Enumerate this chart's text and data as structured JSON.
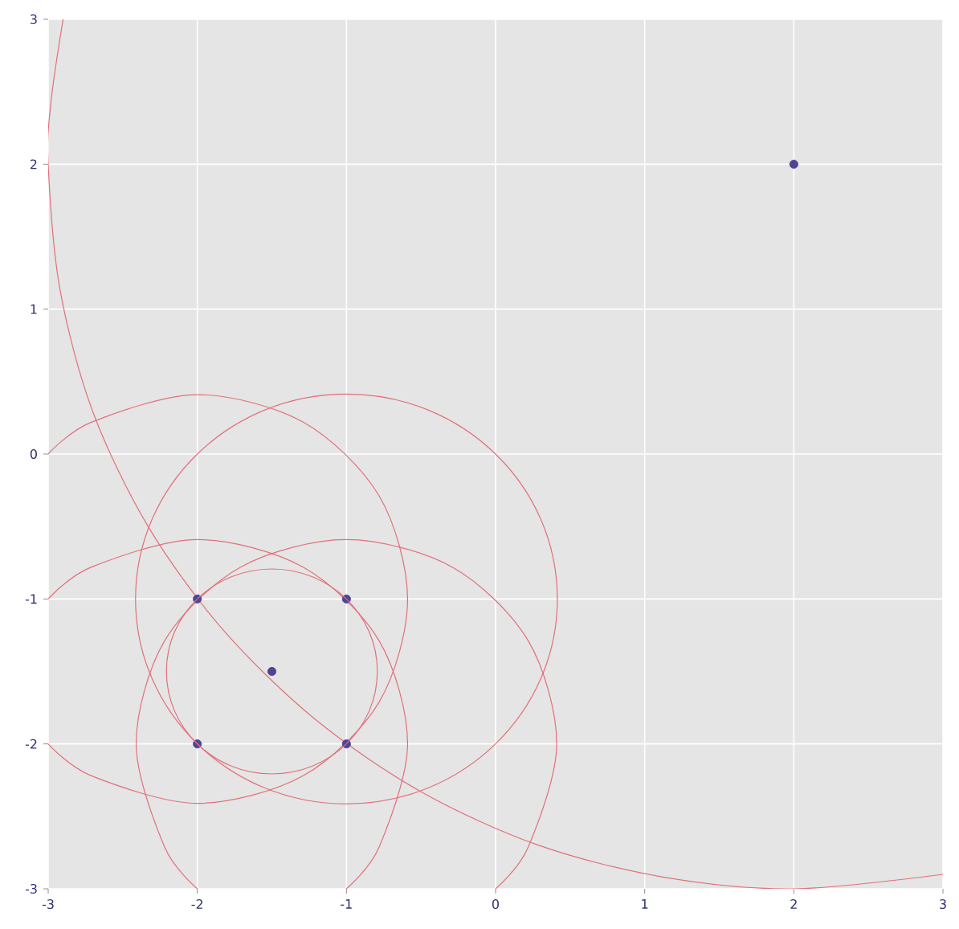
{
  "chart_data": {
    "type": "scatter",
    "xlim": [
      -3,
      3
    ],
    "ylim": [
      -3,
      3
    ],
    "xticks": [
      -3,
      -2,
      -1,
      0,
      1,
      2,
      3
    ],
    "yticks": [
      -3,
      -2,
      -1,
      0,
      1,
      2,
      3
    ],
    "grid": true,
    "line_style": "solid",
    "series": [
      {
        "marker": "circle",
        "color": "#4e4596",
        "x": [
          -2,
          -1,
          -2,
          -1,
          -1.5,
          2
        ],
        "values": [
          -1,
          -1,
          -2,
          -2,
          -1.5,
          2
        ]
      },
      {
        "type": "line",
        "color": "#e0707a",
        "x": [
          -2.9,
          -2.98,
          -3,
          -2.92,
          -2.7,
          -2.33,
          -1.83,
          -1.21,
          -0.5,
          0.29,
          1.13,
          2,
          3
        ],
        "values": [
          3,
          2.44,
          2,
          1.13,
          0.29,
          -0.5,
          -1.21,
          -1.83,
          -2.33,
          -2.7,
          -2.92,
          -3,
          -2.9
        ]
      },
      {
        "type": "line",
        "color": "#e0707a",
        "x": [
          -3,
          -2.71,
          -2,
          -1.29,
          -0.78,
          -0.59,
          -0.78,
          -1.29,
          -2,
          -2.71,
          -3
        ],
        "values": [
          -2,
          -2.22,
          -2.41,
          -2.22,
          -1.71,
          -1,
          -0.29,
          0.22,
          0.41,
          0.22,
          0
        ]
      },
      {
        "type": "line",
        "color": "#e0707a",
        "x": [
          -1,
          -0.78,
          -0.59,
          -0.78,
          -1.29,
          -2,
          -2.71,
          -3
        ],
        "values": [
          -3,
          -2.71,
          -2,
          -1.29,
          -0.78,
          -0.59,
          -0.78,
          -1
        ]
      },
      {
        "type": "line",
        "color": "#e0707a",
        "x": [
          0,
          0.22,
          0.41,
          0.22,
          -0.29,
          -1,
          -1.71,
          -2.22,
          -2.41,
          -2.22,
          -2
        ],
        "values": [
          -3,
          -2.71,
          -2,
          -1.29,
          -0.78,
          -0.59,
          -0.78,
          -1.29,
          -2,
          -2.71,
          -3
        ]
      }
    ]
  }
}
